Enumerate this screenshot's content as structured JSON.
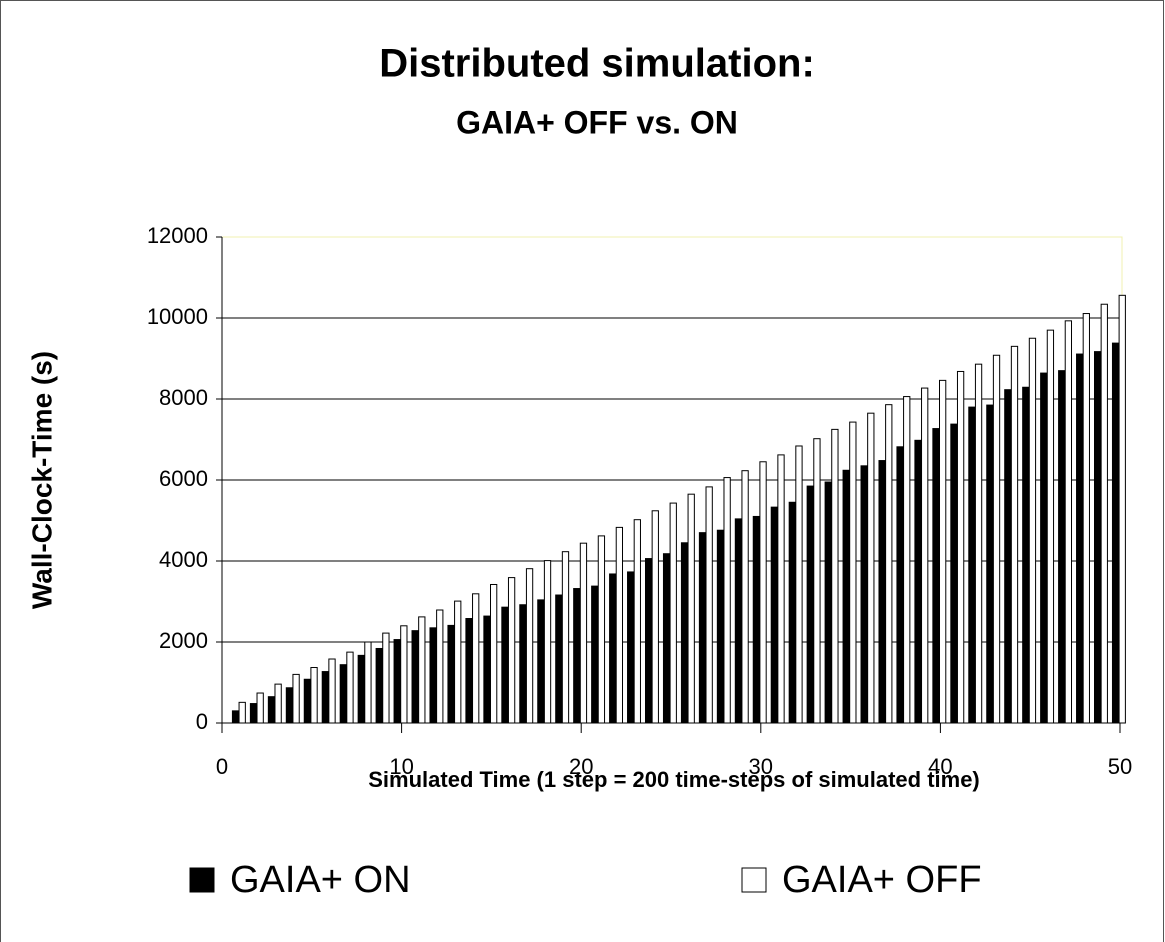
{
  "chart_data": {
    "type": "bar",
    "title": "Distributed simulation:",
    "subtitle": "GAIA+ OFF vs. ON",
    "x_label": "Simulated Time (1 step = 200 time-steps of simulated time)",
    "y_label": "Wall-Clock-Time (s)",
    "x": [
      1,
      2,
      3,
      4,
      5,
      6,
      7,
      8,
      9,
      10,
      11,
      12,
      13,
      14,
      15,
      16,
      17,
      18,
      19,
      20,
      21,
      22,
      23,
      24,
      25,
      26,
      27,
      28,
      29,
      30,
      31,
      32,
      33,
      34,
      35,
      36,
      37,
      38,
      39,
      40,
      41,
      42,
      43,
      44,
      45,
      46,
      47,
      48,
      49,
      50
    ],
    "series": [
      {
        "name": "GAIA+ ON",
        "color": "#000000",
        "values": [
          300,
          480,
          650,
          870,
          1080,
          1270,
          1440,
          1670,
          1840,
          2060,
          2280,
          2350,
          2410,
          2580,
          2640,
          2860,
          2920,
          3040,
          3160,
          3320,
          3380,
          3680,
          3730,
          4060,
          4180,
          4450,
          4700,
          4760,
          5040,
          5100,
          5330,
          5450,
          5850,
          5950,
          6240,
          6350,
          6480,
          6820,
          6980,
          7270,
          7380,
          7800,
          7850,
          8230,
          8290,
          8640,
          8700,
          9110,
          9170,
          9380
        ]
      },
      {
        "name": "GAIA+ OFF",
        "color": "#ffffff",
        "values": [
          510,
          740,
          960,
          1200,
          1370,
          1580,
          1750,
          2000,
          2220,
          2400,
          2620,
          2790,
          3010,
          3190,
          3420,
          3590,
          3810,
          4010,
          4230,
          4440,
          4620,
          4830,
          5020,
          5240,
          5430,
          5650,
          5830,
          6060,
          6230,
          6450,
          6620,
          6840,
          7020,
          7250,
          7430,
          7650,
          7860,
          8060,
          8270,
          8460,
          8680,
          8860,
          9080,
          9300,
          9500,
          9700,
          9930,
          10110,
          10340,
          10560
        ]
      }
    ],
    "xlim": [
      0,
      50
    ],
    "xticks": [
      0,
      10,
      20,
      30,
      40,
      50
    ],
    "ylim": [
      0,
      12000
    ],
    "yticks": [
      0,
      2000,
      4000,
      6000,
      8000,
      10000,
      12000
    ],
    "grid": true,
    "legend": "bottom"
  }
}
